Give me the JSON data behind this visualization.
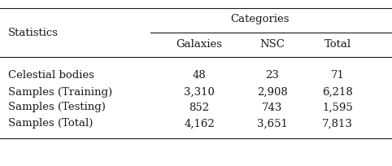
{
  "title_col": "Statistics",
  "category_header": "Categories",
  "sub_headers": [
    "Galaxies",
    "NSC",
    "Total"
  ],
  "rows": [
    [
      "Celestial bodies",
      "48",
      "23",
      "71"
    ],
    [
      "Samples (Training)",
      "3,310",
      "2,908",
      "6,218"
    ],
    [
      "Samples (Testing)",
      "852",
      "743",
      "1,595"
    ],
    [
      "Samples (Total)",
      "4,162",
      "3,651",
      "7,813"
    ]
  ],
  "bg_color": "#ffffff",
  "text_color": "#1a1a1a",
  "font_size": 9.5
}
